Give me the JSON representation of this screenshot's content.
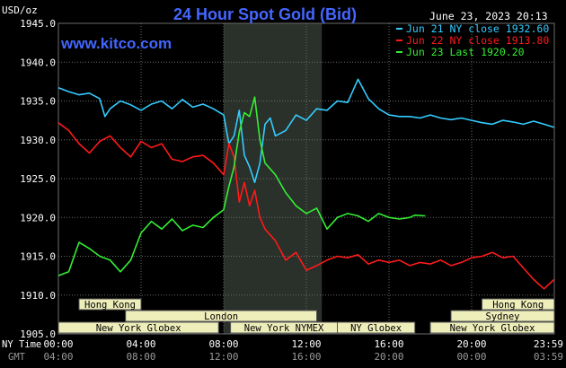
{
  "header": {
    "y_unit": "USD/oz",
    "title": "24 Hour Spot Gold (Bid)",
    "timestamp": "June 23, 2023 20:13",
    "watermark": "www.kitco.com"
  },
  "legend": [
    {
      "name": "Jun 21 NY close 1932.60",
      "color": "#33ccff"
    },
    {
      "name": "Jun 22 NY close 1913.80",
      "color": "#ff1a1a"
    },
    {
      "name": "Jun 23 Last 1920.20",
      "color": "#33ee33"
    }
  ],
  "axis_rows": {
    "ny_label": "NY Time",
    "gmt_label": "GMT"
  },
  "colors": {
    "background": "#000000",
    "grid": "#6b6b6b",
    "title": "#4466ff",
    "axis_text": "#ffffff",
    "gmt_text": "#9a9a9a",
    "session_fill": "#eeeebb",
    "session_text": "#000000",
    "highlight": "#2a302a",
    "blue_line": "#33ccff",
    "red_line": "#ff1a1a",
    "green_line": "#33ee33"
  },
  "sessions": [
    {
      "name": "Hong Kong",
      "start": 1.0,
      "end": 4.0,
      "row": 0
    },
    {
      "name": "London",
      "start": 3.25,
      "end": 12.5,
      "row": 1
    },
    {
      "name": "New York Globex",
      "start": 0.0,
      "end": 7.75,
      "row": 2
    },
    {
      "name": "New York NYMEX",
      "start": 8.33,
      "end": 13.5,
      "row": 2
    },
    {
      "name": "NY Globex",
      "start": 13.5,
      "end": 17.25,
      "row": 2
    },
    {
      "name": "Hong Kong",
      "start": 20.5,
      "end": 24.0,
      "row": 0
    },
    {
      "name": "Sydney",
      "start": 19.0,
      "end": 24.0,
      "row": 1
    },
    {
      "name": "New York Globex",
      "start": 18.0,
      "end": 24.0,
      "row": 2
    }
  ],
  "chart_data": {
    "type": "line",
    "title": "24 Hour Spot Gold (Bid)",
    "ylabel": "USD/oz",
    "ylim": [
      1905,
      1945
    ],
    "yticks": [
      "1945.0",
      "1940.0",
      "1935.0",
      "1930.0",
      "1925.0",
      "1920.0",
      "1915.0",
      "1910.0",
      "1905.0"
    ],
    "xlim": [
      0,
      24
    ],
    "xticks_ny": [
      "00:00",
      "04:00",
      "08:00",
      "12:00",
      "16:00",
      "20:00",
      "23:59"
    ],
    "xticks_gmt": [
      "04:00",
      "08:00",
      "12:00",
      "16:00",
      "20:00",
      "00:00",
      "03:59"
    ],
    "grid": true,
    "highlight_x_range": [
      8.0,
      12.75
    ],
    "series": [
      {
        "name": "Jun 21 NY close 1932.60",
        "color": "#33ccff",
        "x": [
          0,
          0.5,
          1.0,
          1.5,
          2.0,
          2.25,
          2.5,
          3.0,
          3.5,
          4.0,
          4.5,
          5.0,
          5.5,
          6.0,
          6.5,
          7.0,
          7.5,
          8.0,
          8.25,
          8.5,
          8.75,
          9.0,
          9.25,
          9.5,
          9.75,
          10.0,
          10.25,
          10.5,
          11.0,
          11.5,
          12.0,
          12.5,
          13.0,
          13.5,
          14.0,
          14.5,
          15.0,
          15.5,
          16.0,
          16.5,
          17.0,
          17.5,
          18.0,
          18.5,
          19.0,
          19.5,
          20.0,
          20.5,
          21.0,
          21.5,
          22.0,
          22.5,
          23.0,
          23.5,
          23.99
        ],
        "values": [
          1936.7,
          1936.2,
          1935.8,
          1936.0,
          1935.3,
          1933.0,
          1934.0,
          1935.0,
          1934.5,
          1933.8,
          1934.6,
          1935.0,
          1934.0,
          1935.2,
          1934.2,
          1934.6,
          1934.0,
          1933.2,
          1929.5,
          1930.5,
          1933.8,
          1928.0,
          1926.5,
          1924.5,
          1927.0,
          1932.0,
          1932.8,
          1930.5,
          1931.2,
          1933.2,
          1932.5,
          1934.0,
          1933.8,
          1935.0,
          1934.8,
          1937.8,
          1935.3,
          1934.0,
          1933.2,
          1933.0,
          1933.0,
          1932.8,
          1933.2,
          1932.8,
          1932.6,
          1932.8,
          1932.5,
          1932.2,
          1932.0,
          1932.5,
          1932.3,
          1932.0,
          1932.4,
          1932.0,
          1931.6
        ]
      },
      {
        "name": "Jun 22 NY close 1913.80",
        "color": "#ff1a1a",
        "x": [
          0,
          0.5,
          1.0,
          1.5,
          2.0,
          2.5,
          3.0,
          3.5,
          4.0,
          4.5,
          5.0,
          5.5,
          6.0,
          6.5,
          7.0,
          7.5,
          8.0,
          8.25,
          8.5,
          8.75,
          9.0,
          9.25,
          9.5,
          9.75,
          10.0,
          10.5,
          11.0,
          11.5,
          12.0,
          12.5,
          13.0,
          13.5,
          14.0,
          14.5,
          15.0,
          15.5,
          16.0,
          16.5,
          17.0,
          17.5,
          18.0,
          18.5,
          19.0,
          19.5,
          20.0,
          20.5,
          21.0,
          21.5,
          22.0,
          22.5,
          23.0,
          23.5,
          23.99
        ],
        "values": [
          1932.2,
          1931.2,
          1929.5,
          1928.3,
          1929.8,
          1930.5,
          1929.0,
          1927.8,
          1929.8,
          1929.0,
          1929.5,
          1927.5,
          1927.2,
          1927.8,
          1928.0,
          1927.0,
          1925.5,
          1929.5,
          1927.8,
          1922.0,
          1924.5,
          1921.5,
          1923.5,
          1920.0,
          1918.5,
          1917.0,
          1914.5,
          1915.5,
          1913.2,
          1913.8,
          1914.5,
          1915.0,
          1914.8,
          1915.2,
          1914.0,
          1914.5,
          1914.2,
          1914.5,
          1913.8,
          1914.2,
          1914.0,
          1914.5,
          1913.8,
          1914.2,
          1914.8,
          1915.0,
          1915.5,
          1914.8,
          1915.0,
          1913.5,
          1912.0,
          1910.8,
          1912.0
        ]
      },
      {
        "name": "Jun 23 Last 1920.20",
        "color": "#33ee33",
        "x": [
          0,
          0.5,
          1.0,
          1.5,
          2.0,
          2.5,
          3.0,
          3.5,
          4.0,
          4.5,
          5.0,
          5.5,
          6.0,
          6.5,
          7.0,
          7.5,
          8.0,
          8.25,
          8.5,
          8.75,
          9.0,
          9.25,
          9.5,
          9.75,
          10.0,
          10.5,
          11.0,
          11.5,
          12.0,
          12.5,
          13.0,
          13.5,
          14.0,
          14.5,
          15.0,
          15.5,
          16.0,
          16.5,
          17.0,
          17.25,
          17.75
        ],
        "values": [
          1912.5,
          1913.0,
          1916.8,
          1916.0,
          1915.0,
          1914.5,
          1913.0,
          1914.5,
          1918.0,
          1919.5,
          1918.5,
          1919.8,
          1918.3,
          1919.0,
          1918.7,
          1920.0,
          1921.0,
          1924.0,
          1926.5,
          1931.0,
          1933.5,
          1933.0,
          1935.5,
          1930.0,
          1927.0,
          1925.5,
          1923.2,
          1921.5,
          1920.5,
          1921.2,
          1918.5,
          1920.0,
          1920.5,
          1920.2,
          1919.5,
          1920.5,
          1920.0,
          1919.8,
          1920.0,
          1920.3,
          1920.2
        ]
      }
    ]
  }
}
